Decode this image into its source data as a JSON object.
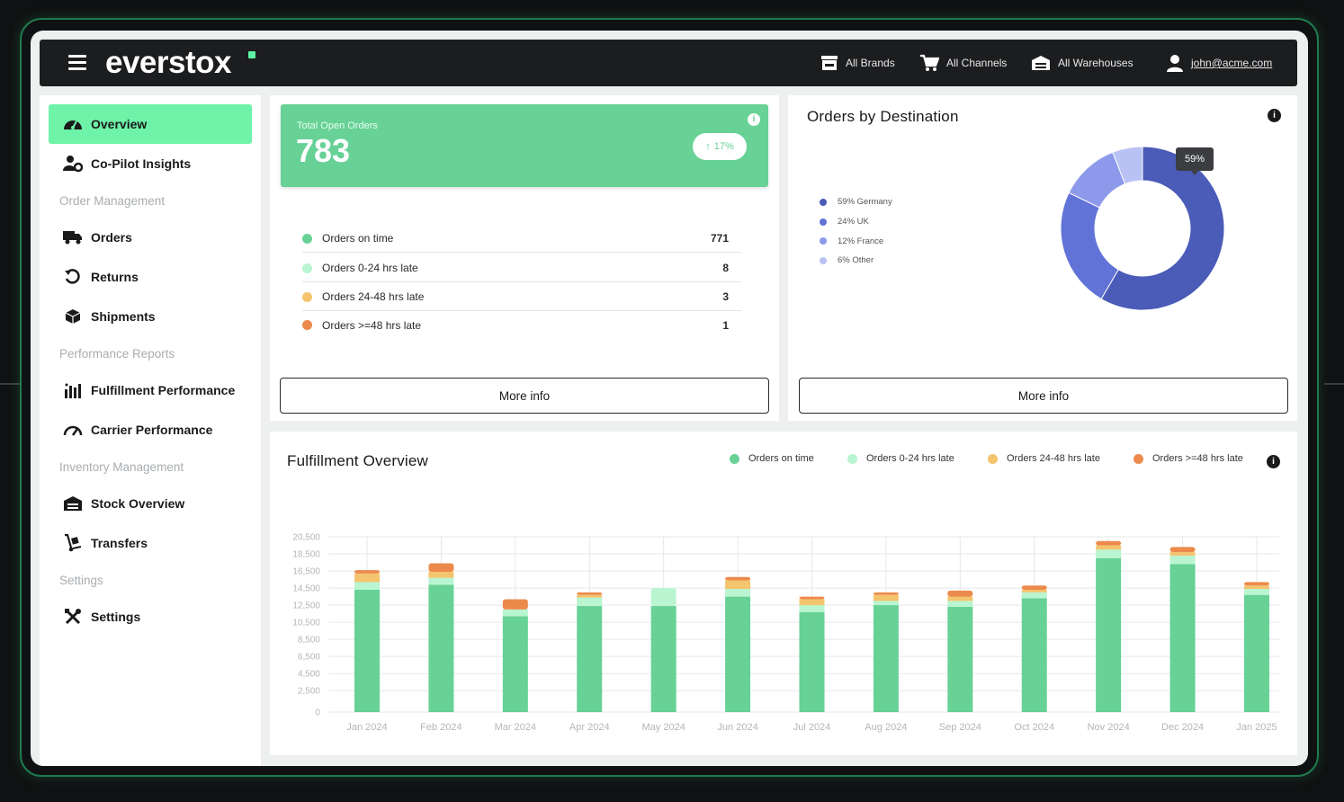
{
  "topbar": {
    "logo": "everstox",
    "brands": "All Brands",
    "channels": "All Channels",
    "warehouses": "All Warehouses",
    "user": "john@acme.com"
  },
  "sidebar": {
    "overview": "Overview",
    "copilot": "Co-Pilot Insights",
    "section_order": "Order Management",
    "orders": "Orders",
    "returns": "Returns",
    "shipments": "Shipments",
    "section_performance": "Performance Reports",
    "fulfillment": "Fulfillment Performance",
    "carrier": "Carrier Performance",
    "section_inventory": "Inventory Management",
    "stock": "Stock Overview",
    "transfers": "Transfers",
    "section_settings": "Settings",
    "settings": "Settings"
  },
  "open_orders": {
    "label": "Total Open Orders",
    "value": "783",
    "change": "17%",
    "rows": [
      {
        "label": "Orders on time",
        "value": "771"
      },
      {
        "label": "Orders 0-24 hrs late",
        "value": "8"
      },
      {
        "label": "Orders 24-48 hrs late",
        "value": "3"
      },
      {
        "label": "Orders >=48 hrs late",
        "value": "1"
      }
    ],
    "more_info": "More info"
  },
  "destination": {
    "title": "Orders by Destination",
    "legend": [
      "59% Germany",
      "24% UK",
      "12% France",
      "6% Other"
    ],
    "tooltip": "59%",
    "more_info": "More info"
  },
  "overview": {
    "title": "Fulfillment Overview",
    "legend": [
      "Orders on time",
      "Orders 0-24 hrs late",
      "Orders 24-48 hrs late",
      "Orders >=48 hrs late"
    ]
  },
  "colors": {
    "on_time": "#67d196",
    "late_0_24": "#b8f5d0",
    "late_24_48": "#f5c46e",
    "late_48": "#ec8a4c",
    "accent": "#6ef3a9",
    "donut": [
      "#4a5bb8",
      "#6173d6",
      "#8d9aeb",
      "#bac2f5"
    ]
  },
  "chart_data": [
    {
      "type": "pie",
      "title": "Orders by Destination",
      "categories": [
        "Germany",
        "UK",
        "France",
        "Other"
      ],
      "values": [
        59,
        24,
        12,
        6
      ]
    },
    {
      "type": "bar",
      "title": "Fulfillment Overview",
      "categories": [
        "Jan 2024",
        "Feb 2024",
        "Mar 2024",
        "Apr 2024",
        "May 2024",
        "Jun 2024",
        "Jul 2024",
        "Aug 2024",
        "Sep 2024",
        "Oct 2024",
        "Nov 2024",
        "Dec 2024",
        "Jan 2025"
      ],
      "series": [
        {
          "name": "Orders on time",
          "values": [
            14300,
            14900,
            11200,
            12400,
            12400,
            13500,
            11700,
            12500,
            12300,
            13300,
            18000,
            17300,
            13700
          ]
        },
        {
          "name": "Orders 0-24 hrs late",
          "values": [
            900,
            800,
            800,
            1000,
            2100,
            900,
            800,
            500,
            700,
            700,
            1000,
            1000,
            700
          ]
        },
        {
          "name": "Orders 24-48 hrs late",
          "values": [
            1000,
            700,
            0,
            300,
            0,
            1000,
            700,
            700,
            500,
            300,
            500,
            400,
            400
          ]
        },
        {
          "name": "Orders >=48 hrs late",
          "values": [
            400,
            1000,
            1200,
            300,
            0,
            400,
            300,
            300,
            700,
            500,
            500,
            600,
            400
          ]
        }
      ],
      "ylim": [
        0,
        20500
      ],
      "yticks": [
        "0",
        "2,500",
        "4,500",
        "6,500",
        "8,500",
        "10,500",
        "12,500",
        "14,500",
        "16,500",
        "18,500",
        "20,500"
      ],
      "grid": true,
      "legend": "top-right"
    }
  ]
}
